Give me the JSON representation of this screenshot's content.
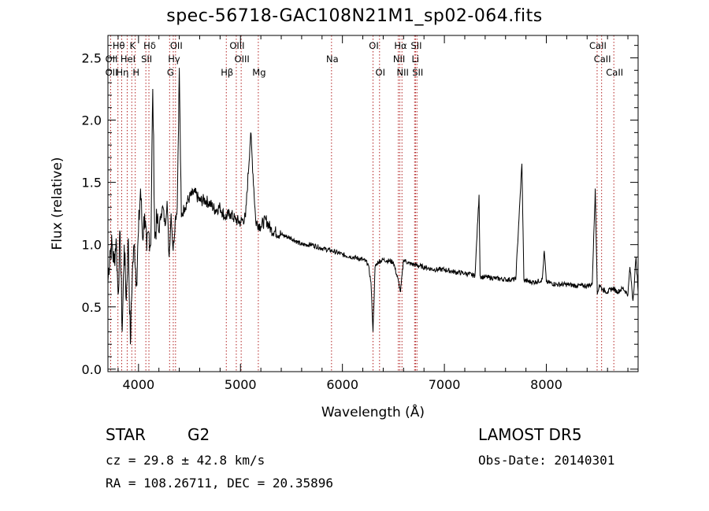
{
  "chart_data": {
    "type": "line",
    "title": "spec-56718-GAC108N21M1_sp02-064.fits",
    "xlabel": "Wavelength (Å)",
    "ylabel": "Flux (relative)",
    "xlim": [
      3700,
      8900
    ],
    "ylim": [
      -0.02,
      2.68
    ],
    "xticks": [
      4000,
      5000,
      6000,
      7000,
      8000
    ],
    "yticks": [
      "0.0",
      "0.5",
      "1.0",
      "1.5",
      "2.0",
      "2.5"
    ],
    "grid": false,
    "line_color": "#000000",
    "marker_color": "#b22222",
    "series": [
      {
        "x": [
          3700,
          3720,
          3740,
          3760,
          3780,
          3800,
          3820,
          3840,
          3860,
          3880,
          3900,
          3920,
          3940,
          3960,
          3980,
          4000,
          4020,
          4040,
          4060,
          4080,
          4100,
          4120,
          4140,
          4160,
          4180,
          4200,
          4220,
          4240,
          4260,
          4280,
          4300,
          4320,
          4340,
          4360,
          4380,
          4400,
          4420,
          4450,
          4500,
          4550,
          4600,
          4650,
          4700,
          4750,
          4800,
          4850,
          4900,
          4950,
          5000,
          5050,
          5100,
          5150,
          5200,
          5250,
          5300,
          5400,
          5500,
          5600,
          5700,
          5800,
          5900,
          6000,
          6100,
          6200,
          6250,
          6280,
          6300,
          6320,
          6350,
          6400,
          6500,
          6550,
          6570,
          6600,
          6650,
          6700,
          6800,
          6900,
          7000,
          7100,
          7200,
          7300,
          7340,
          7350,
          7360,
          7400,
          7500,
          7600,
          7700,
          7760,
          7780,
          7800,
          7850,
          7900,
          7960,
          7980,
          8000,
          8100,
          8200,
          8300,
          8400,
          8450,
          8480,
          8500,
          8520,
          8550,
          8600,
          8650,
          8700,
          8750,
          8800,
          8820,
          8850,
          8880,
          8900
        ],
        "y": [
          0.7,
          0.95,
          1.0,
          0.85,
          1.05,
          0.6,
          1.1,
          0.3,
          1.0,
          0.55,
          1.05,
          0.2,
          0.8,
          1.0,
          0.7,
          1.1,
          1.45,
          1.05,
          1.25,
          0.95,
          1.1,
          1.0,
          2.25,
          1.05,
          1.2,
          1.1,
          1.25,
          1.3,
          1.15,
          1.35,
          0.9,
          1.25,
          0.95,
          1.2,
          1.3,
          2.42,
          1.22,
          1.3,
          1.38,
          1.42,
          1.35,
          1.36,
          1.33,
          1.28,
          1.3,
          1.22,
          1.25,
          1.2,
          1.18,
          1.22,
          1.9,
          1.18,
          1.15,
          1.2,
          1.12,
          1.08,
          1.05,
          1.0,
          1.0,
          0.97,
          0.95,
          0.92,
          0.9,
          0.88,
          0.85,
          0.7,
          0.3,
          0.82,
          0.86,
          0.88,
          0.86,
          0.7,
          0.62,
          0.88,
          0.85,
          0.84,
          0.82,
          0.8,
          0.8,
          0.78,
          0.77,
          0.75,
          1.4,
          0.75,
          0.74,
          0.74,
          0.73,
          0.72,
          0.72,
          1.65,
          0.72,
          0.71,
          0.7,
          0.7,
          0.72,
          0.95,
          0.7,
          0.68,
          0.68,
          0.67,
          0.67,
          0.68,
          1.45,
          0.6,
          0.68,
          0.64,
          0.62,
          0.65,
          0.62,
          0.65,
          0.6,
          0.82,
          0.55,
          0.9,
          0.62
        ]
      }
    ],
    "markers": [
      {
        "label": "Hθ",
        "wl": 3798,
        "row": 0
      },
      {
        "label": "K",
        "wl": 3934,
        "row": 0
      },
      {
        "label": "Hδ",
        "wl": 4102,
        "row": 0
      },
      {
        "label": "OII",
        "wl": 4363,
        "row": 0
      },
      {
        "label": "OIII",
        "wl": 4959,
        "row": 0
      },
      {
        "label": "OI",
        "wl": 6300,
        "row": 0
      },
      {
        "label": "Hα",
        "wl": 6563,
        "row": 0
      },
      {
        "label": "SII",
        "wl": 6717,
        "row": 0
      },
      {
        "label": "CaII",
        "wl": 8498,
        "row": 0
      },
      {
        "label": "OII",
        "wl": 3727,
        "row": 1
      },
      {
        "label": "HeI",
        "wl": 3889,
        "row": 1
      },
      {
        "label": "SII",
        "wl": 4072,
        "row": 1
      },
      {
        "label": "Hγ",
        "wl": 4341,
        "row": 1
      },
      {
        "label": "OIII",
        "wl": 5007,
        "row": 1
      },
      {
        "label": "NII",
        "wl": 6548,
        "row": 1
      },
      {
        "label": "Li",
        "wl": 6708,
        "row": 1
      },
      {
        "label": "CaII",
        "wl": 8542,
        "row": 1
      },
      {
        "label": "OII",
        "wl": 3727,
        "row": 2
      },
      {
        "label": "Hη",
        "wl": 3835,
        "row": 2
      },
      {
        "label": "H",
        "wl": 3968,
        "row": 2
      },
      {
        "label": "G",
        "wl": 4305,
        "row": 2
      },
      {
        "label": "Hβ",
        "wl": 4861,
        "row": 2
      },
      {
        "label": "Mg",
        "wl": 5175,
        "row": 2
      },
      {
        "label": "OI",
        "wl": 6364,
        "row": 2
      },
      {
        "label": "NII",
        "wl": 6584,
        "row": 2
      },
      {
        "label": "SII",
        "wl": 6731,
        "row": 2
      },
      {
        "label": "CaII",
        "wl": 8662,
        "row": 2
      },
      {
        "label": "Na",
        "wl": 5893,
        "row": 1
      }
    ]
  },
  "footer": {
    "object_type": "STAR",
    "spectral_class": "G2",
    "survey": "LAMOST DR5",
    "redshift": "cz = 29.8 ± 42.8 km/s",
    "obs_date": "Obs-Date: 20140301",
    "coords": "RA = 108.26711, DEC =  20.35896"
  }
}
